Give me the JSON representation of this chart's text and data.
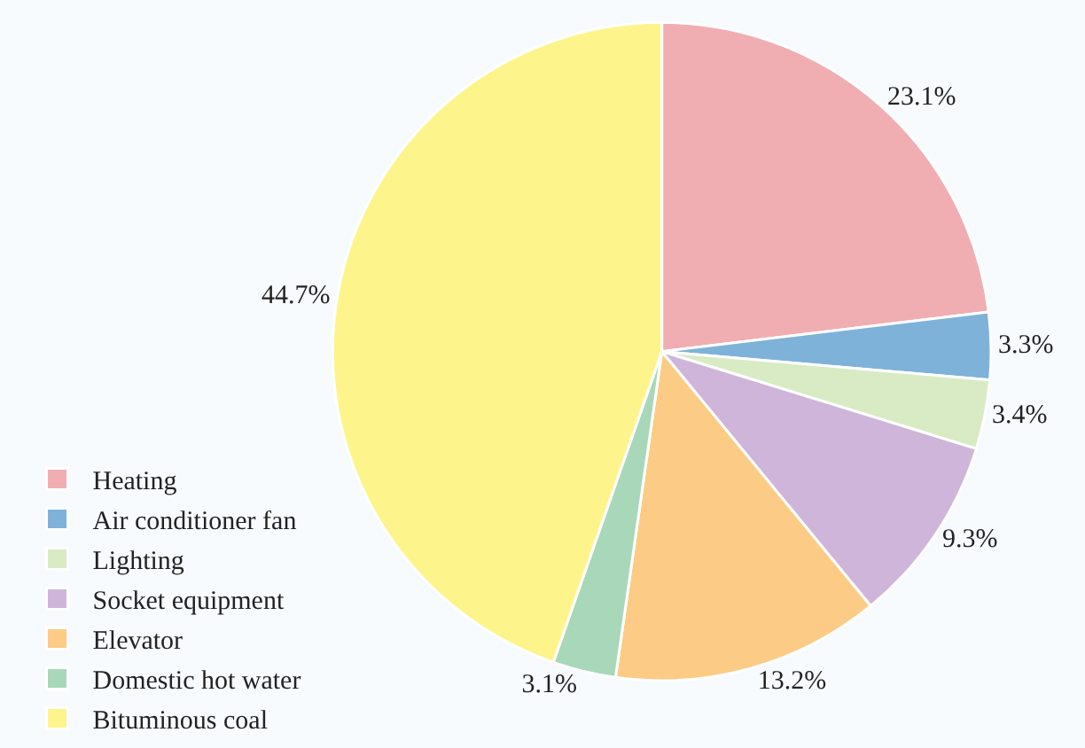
{
  "chart_data": {
    "type": "pie",
    "categories": [
      "Heating",
      "Air conditioner fan",
      "Lighting",
      "Socket equipment",
      "Elevator",
      "Domestic hot water",
      "Bituminous coal"
    ],
    "values": [
      23.1,
      3.3,
      3.4,
      9.3,
      13.2,
      3.1,
      44.7
    ],
    "colors": [
      "#f0aeb2",
      "#7fb2d9",
      "#d8ebc5",
      "#cfb5d9",
      "#fccb85",
      "#a8d8b9",
      "#fdf58c"
    ],
    "value_labels": [
      "23.1%",
      "3.3%",
      "3.4%",
      "9.3%",
      "13.2%",
      "3.1%",
      "44.7%"
    ],
    "legend": "bottom left"
  }
}
